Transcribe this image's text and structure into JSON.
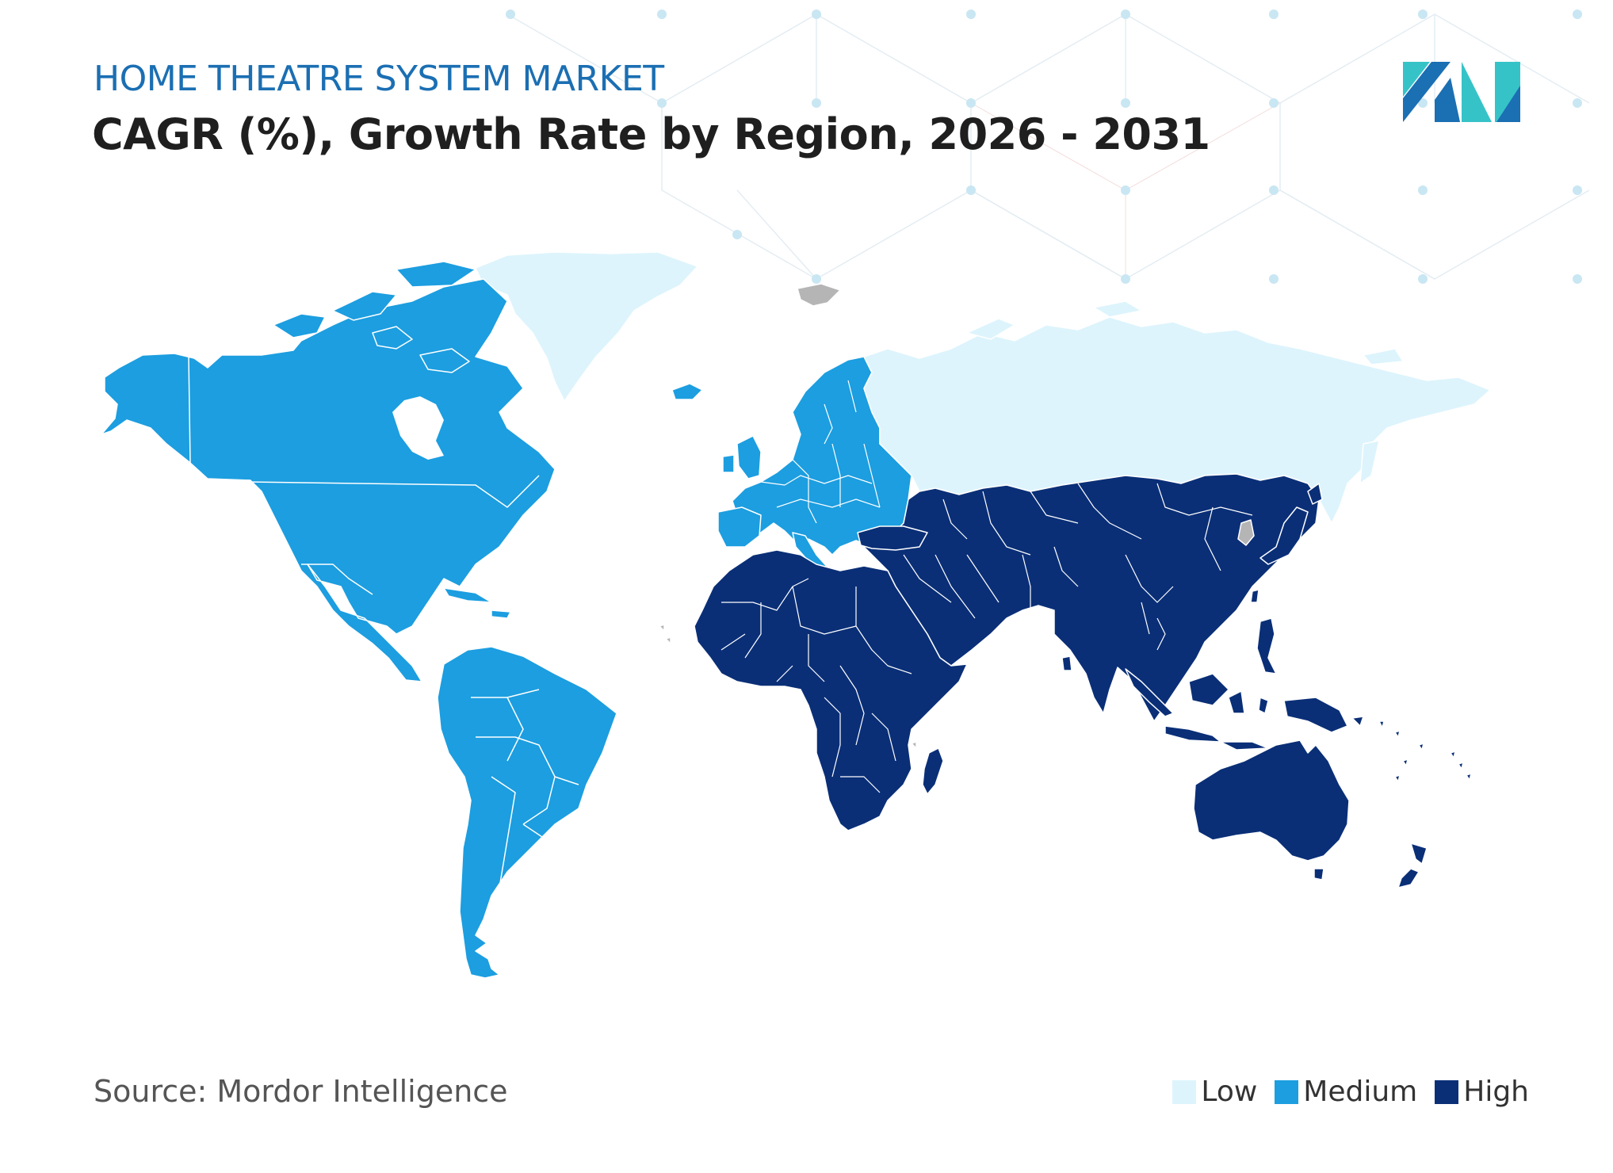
{
  "header": {
    "subtitle": "HOME THEATRE SYSTEM MARKET",
    "title": "CAGR (%), Growth Rate by Region, 2026 - 2031"
  },
  "footer": {
    "source": "Source: Mordor Intelligence"
  },
  "legend": [
    {
      "label": "Low",
      "color": "#ddf4fc"
    },
    {
      "label": "Medium",
      "color": "#1c9ee0"
    },
    {
      "label": "High",
      "color": "#0a2f77"
    }
  ],
  "map": {
    "regions": [
      {
        "name": "North America",
        "level": "Medium"
      },
      {
        "name": "South America",
        "level": "Medium"
      },
      {
        "name": "Europe",
        "level": "Medium"
      },
      {
        "name": "Russia & Greenland",
        "level": "Low"
      },
      {
        "name": "Africa",
        "level": "High"
      },
      {
        "name": "Middle East",
        "level": "High"
      },
      {
        "name": "Asia",
        "level": "High"
      },
      {
        "name": "Australia & Oceania",
        "level": "High"
      }
    ],
    "no_data_color": "#b5b5b5"
  },
  "logo": {
    "name": "mordor-intelligence-logo",
    "colors": [
      "#1b6fb3",
      "#36c3c8"
    ]
  }
}
